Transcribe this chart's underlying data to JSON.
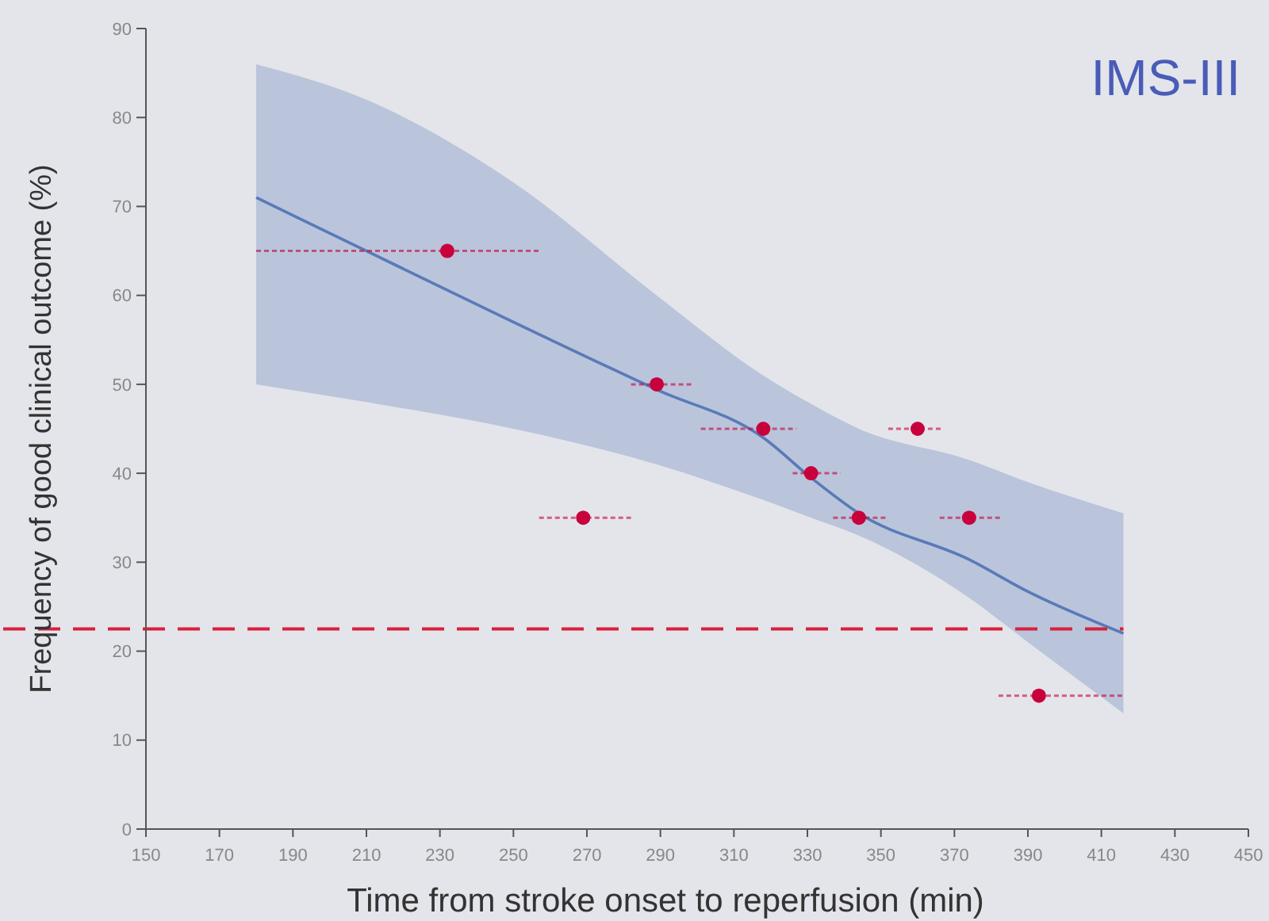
{
  "chart_data": {
    "type": "scatter",
    "title": "IMS-III",
    "xlabel": "Time from stroke onset to reperfusion (min)",
    "ylabel": "Frequency of good clinical outcome (%)",
    "xlim": [
      150,
      450
    ],
    "xticks": [
      150,
      170,
      190,
      210,
      230,
      250,
      270,
      290,
      310,
      330,
      350,
      370,
      390,
      410,
      430,
      450
    ],
    "ylim": [
      0,
      90
    ],
    "yticks": [
      0,
      10,
      20,
      30,
      40,
      50,
      60,
      70,
      80,
      90
    ],
    "grid": false,
    "series": [
      {
        "type": "line",
        "color": "#5a7ab8",
        "line_style": "solid",
        "marker": "none",
        "x": [
          180,
          210,
          250,
          289,
          318,
          331,
          344,
          374,
          390,
          416
        ],
        "values": [
          71,
          65,
          57,
          49.4,
          44,
          39.5,
          35.5,
          30.3,
          26.7,
          22
        ],
        "lower": [
          50,
          48,
          45,
          41,
          37,
          35,
          33,
          26,
          21,
          13
        ],
        "upper": [
          86,
          82,
          72.7,
          60,
          51,
          47.8,
          45,
          41.5,
          39,
          35.5
        ]
      },
      {
        "color": "#c8003c",
        "marker": "circle",
        "x": [
          232,
          269,
          289,
          318,
          331,
          344,
          360,
          374,
          393
        ],
        "values": [
          65,
          35,
          50,
          45,
          40,
          35,
          45,
          35,
          15
        ],
        "xerrors": [
          [
            180,
            257
          ],
          [
            257,
            282
          ],
          [
            282,
            299
          ],
          [
            301,
            327
          ],
          [
            326,
            339
          ],
          [
            337,
            352
          ],
          [
            352,
            367
          ],
          [
            366,
            383
          ],
          [
            382,
            416
          ]
        ]
      }
    ],
    "ref_lines": [
      {
        "axis": "y",
        "value": 22.5,
        "color": "#d8203c",
        "line_style": "dashed"
      }
    ]
  }
}
